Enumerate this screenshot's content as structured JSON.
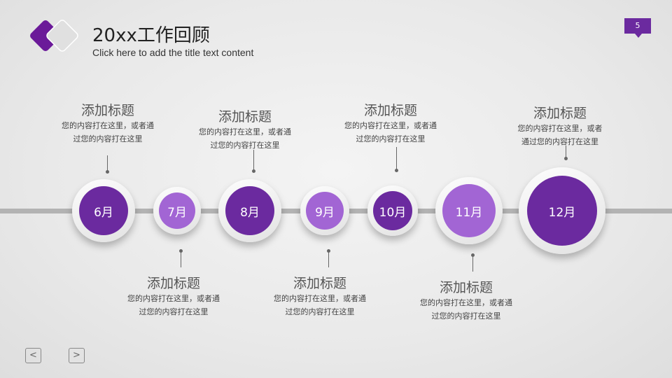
{
  "header": {
    "title": "20xx工作回顾",
    "subtitle": "Click here to add the title text content",
    "page_number": "5"
  },
  "colors": {
    "dark_purple": "#6b2a9f",
    "light_purple": "#a265d4",
    "line": "#b3b3b3"
  },
  "timeline": [
    {
      "month": "6月",
      "tone": "dark",
      "heading": "添加标题",
      "text_line1": "您的内容打在这里，或者通",
      "text_line2": "过您的内容打在这里",
      "position": "top"
    },
    {
      "month": "7月",
      "tone": "light",
      "heading": "添加标题",
      "text_line1": "您的内容打在这里，或者通",
      "text_line2": "过您的内容打在这里",
      "position": "bottom"
    },
    {
      "month": "8月",
      "tone": "dark",
      "heading": "添加标题",
      "text_line1": "您的内容打在这里，或者通",
      "text_line2": "过您的内容打在这里",
      "position": "top"
    },
    {
      "month": "9月",
      "tone": "light",
      "heading": "添加标题",
      "text_line1": "您的内容打在这里，或者通",
      "text_line2": "过您的内容打在这里",
      "position": "bottom"
    },
    {
      "month": "10月",
      "tone": "dark",
      "heading": "添加标题",
      "text_line1": "您的内容打在这里，或者通",
      "text_line2": "过您的内容打在这里",
      "position": "top"
    },
    {
      "month": "11月",
      "tone": "light",
      "heading": "添加标题",
      "text_line1": "您的内容打在这里，或者通",
      "text_line2": "过您的内容打在这里",
      "position": "bottom"
    },
    {
      "month": "12月",
      "tone": "dark",
      "heading": "添加标题",
      "text_line1": "您的内容打在这里，或者",
      "text_line2": "通过您的内容打在这里",
      "position": "top"
    }
  ],
  "nav": {
    "prev_icon": "chevron-left-icon",
    "next_icon": "chevron-right-icon",
    "prev": "<",
    "next": ">"
  }
}
